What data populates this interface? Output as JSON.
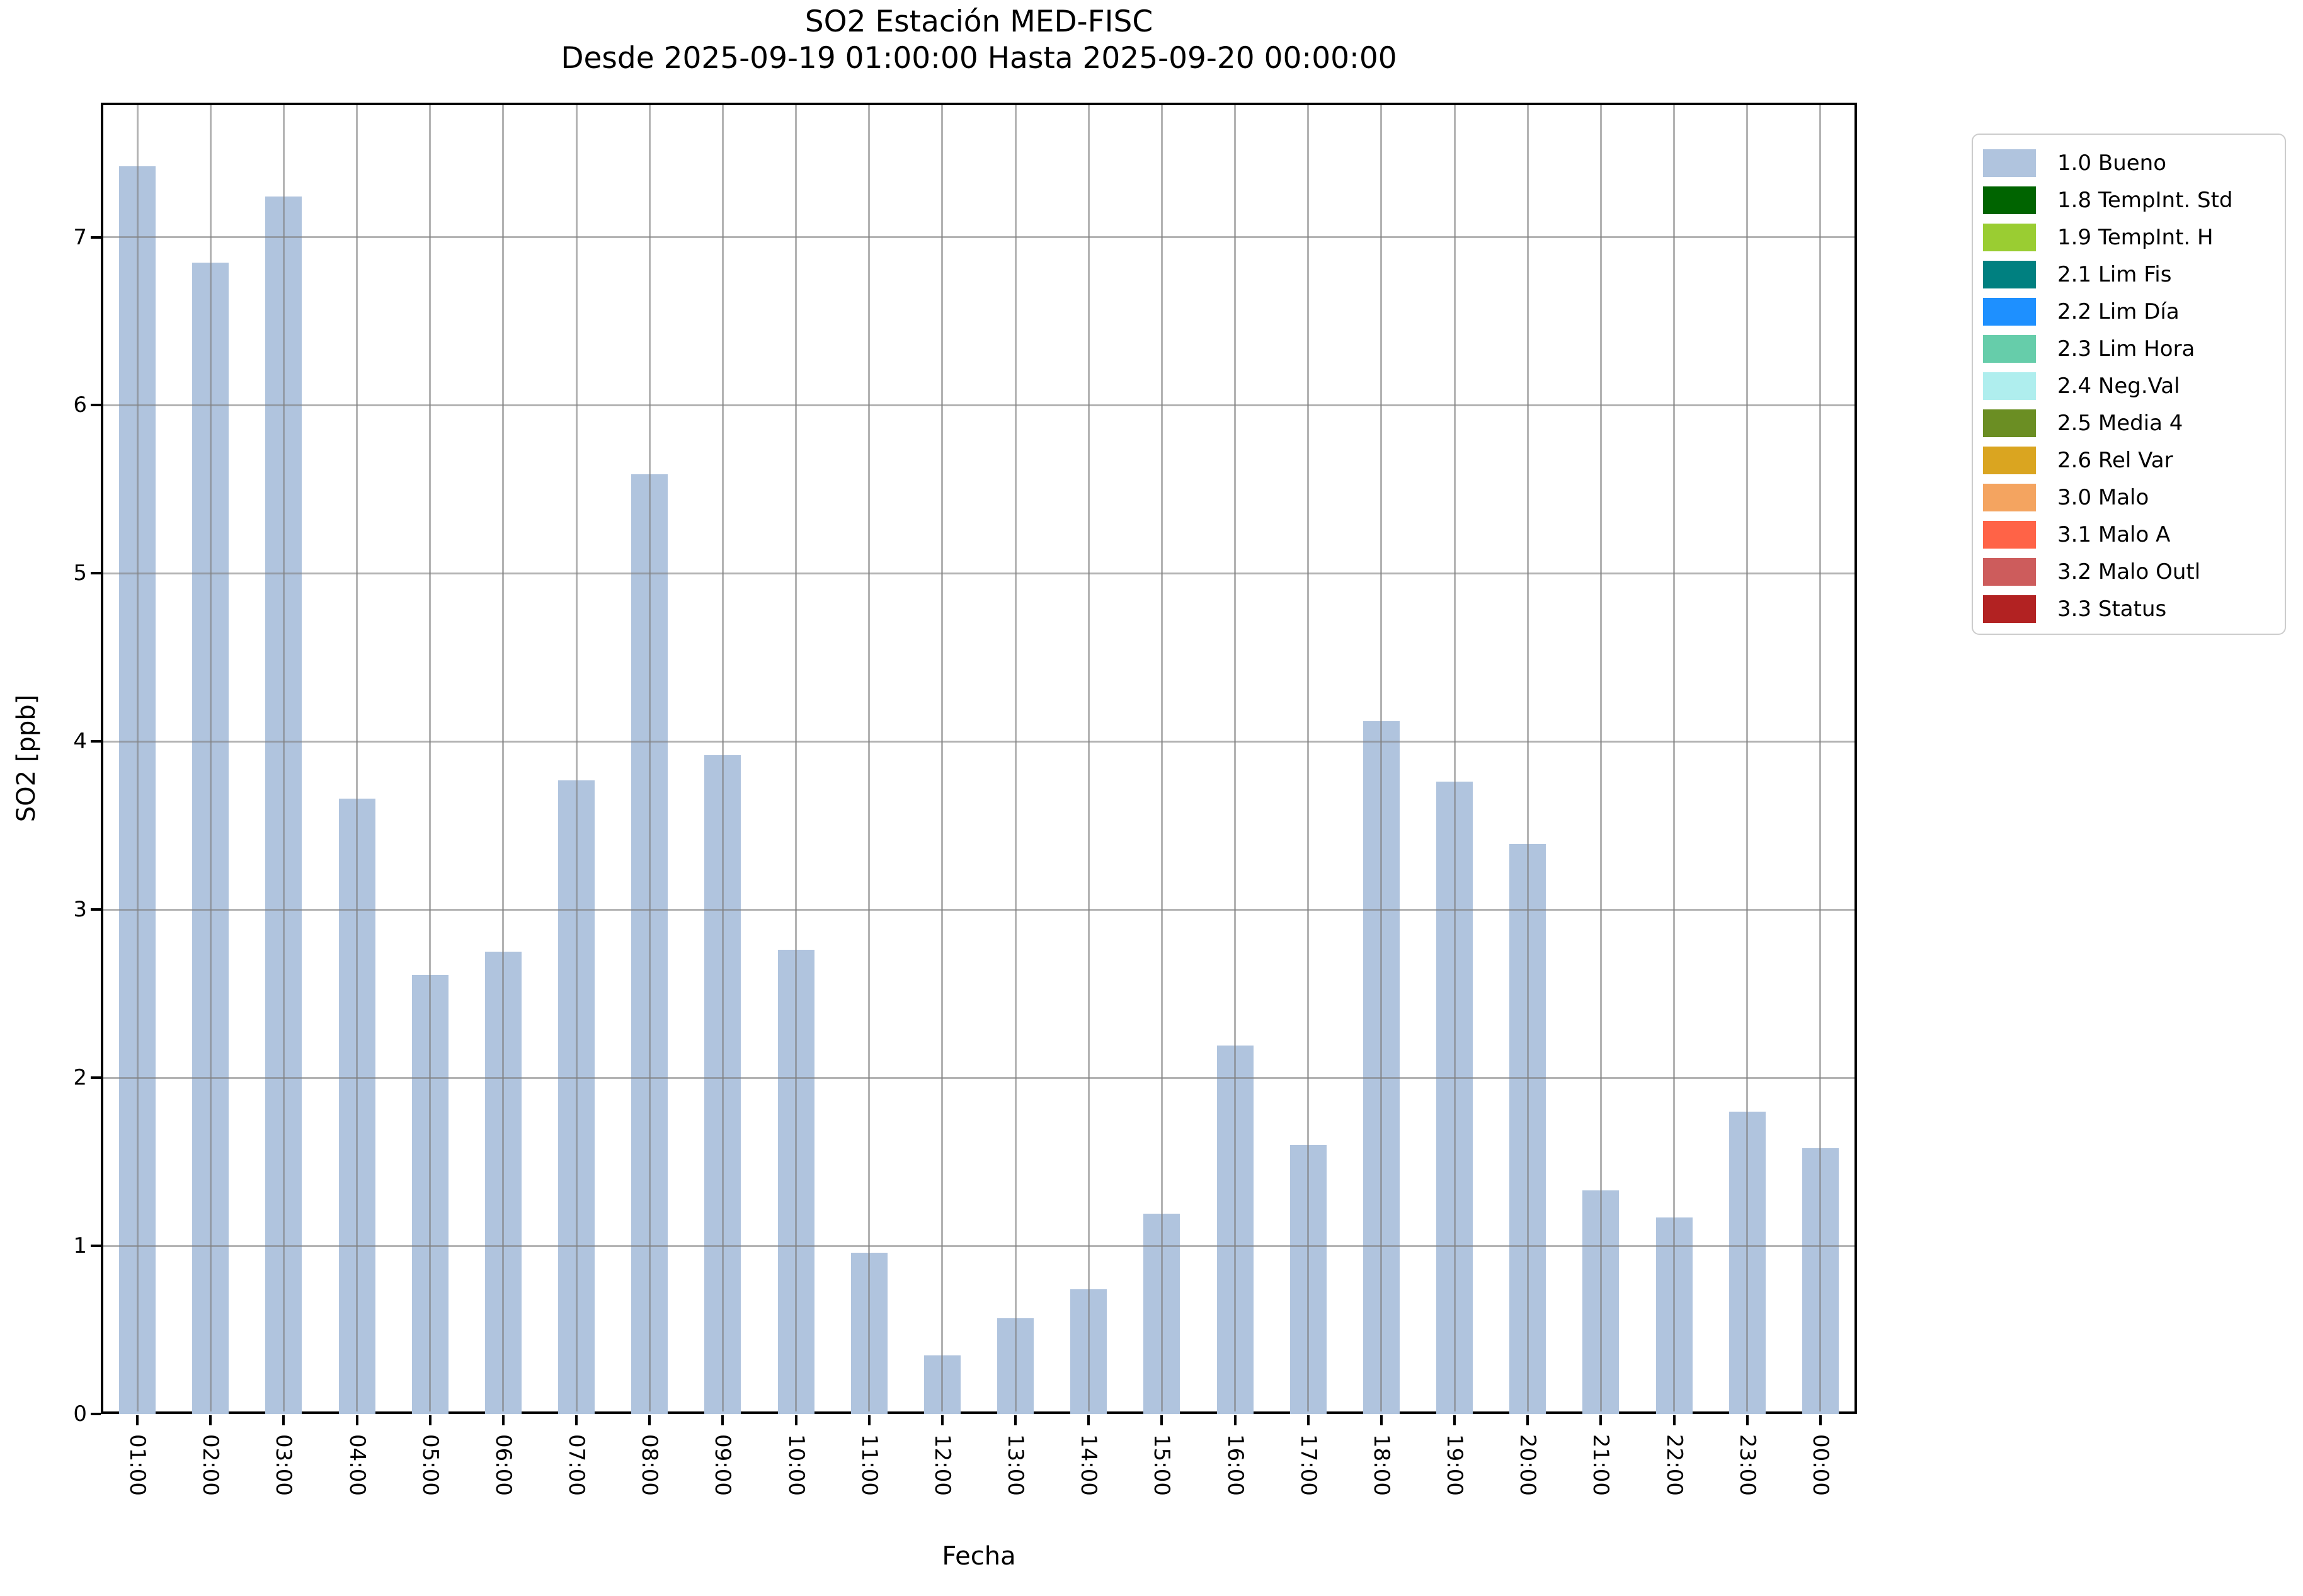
{
  "figure": {
    "title": "SO2 Estación MED-FISC",
    "subtitle": "Desde 2025-09-19 01:00:00 Hasta 2025-09-20 00:00:00"
  },
  "chart_data": {
    "type": "bar",
    "title": "SO2 Estación MED-FISC",
    "subtitle": "Desde 2025-09-19 01:00:00 Hasta 2025-09-20 00:00:00",
    "xlabel": "Fecha",
    "ylabel": "SO2 [ppb]",
    "categories": [
      "01:00",
      "02:00",
      "03:00",
      "04:00",
      "05:00",
      "06:00",
      "07:00",
      "08:00",
      "09:00",
      "10:00",
      "11:00",
      "12:00",
      "13:00",
      "14:00",
      "15:00",
      "16:00",
      "17:00",
      "18:00",
      "19:00",
      "20:00",
      "21:00",
      "22:00",
      "23:00",
      "00:00"
    ],
    "values": [
      7.42,
      6.85,
      7.24,
      3.66,
      2.61,
      2.75,
      3.77,
      5.59,
      3.92,
      2.76,
      0.96,
      0.35,
      0.57,
      0.74,
      1.19,
      2.19,
      1.6,
      4.12,
      3.76,
      3.39,
      1.33,
      1.17,
      1.8,
      1.58
    ],
    "series_name": "1.0 Bueno",
    "bar_color": "#b0c4de",
    "grid": true,
    "ylim": [
      0,
      7.8
    ],
    "yticks": [
      0,
      1,
      2,
      3,
      4,
      5,
      6,
      7
    ],
    "legend_position": "outside-upper-right",
    "legend": [
      {
        "label": "1.0 Bueno",
        "color": "#b0c4de"
      },
      {
        "label": "1.8 TempInt. Std",
        "color": "#006400"
      },
      {
        "label": "1.9 TempInt. H",
        "color": "#9acd32"
      },
      {
        "label": "2.1 Lim Fis",
        "color": "#008080"
      },
      {
        "label": "2.2 Lim Día",
        "color": "#1e90ff"
      },
      {
        "label": "2.3 Lim Hora",
        "color": "#66cdaa"
      },
      {
        "label": "2.4 Neg.Val",
        "color": "#afeeee"
      },
      {
        "label": "2.5 Media 4",
        "color": "#6b8e23"
      },
      {
        "label": "2.6 Rel Var",
        "color": "#daa520"
      },
      {
        "label": "3.0 Malo",
        "color": "#f4a460"
      },
      {
        "label": "3.1 Malo A",
        "color": "#ff6347"
      },
      {
        "label": "3.2 Malo Outl",
        "color": "#cd5c5c"
      },
      {
        "label": "3.3 Status",
        "color": "#b22222"
      }
    ]
  }
}
